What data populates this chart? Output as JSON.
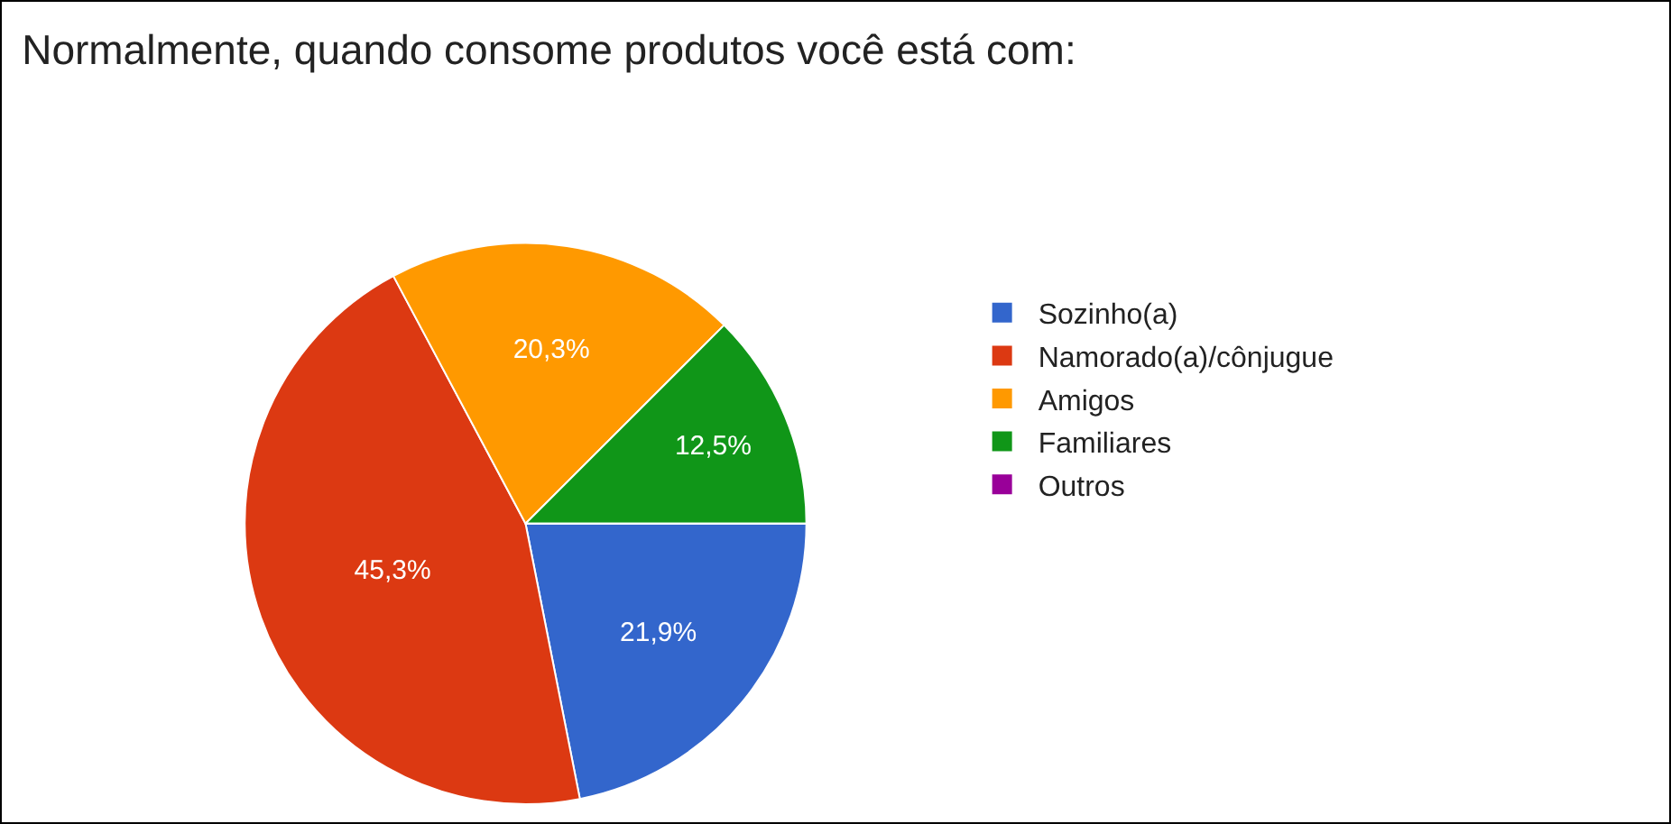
{
  "chart_data": {
    "type": "pie",
    "title": "Normalmente, quando consome produtos você está com:",
    "categories": [
      "Sozinho(a)",
      "Namorado(a)/cônjugue",
      "Amigos",
      "Familiares",
      "Outros"
    ],
    "values": [
      21.9,
      45.3,
      20.3,
      12.5,
      0
    ],
    "colors": [
      "#3366cc",
      "#dc3912",
      "#ff9900",
      "#109618",
      "#990099"
    ],
    "value_labels": [
      "21,9%",
      "45,3%",
      "20,3%",
      "12,5%",
      null
    ],
    "legend": "right"
  }
}
